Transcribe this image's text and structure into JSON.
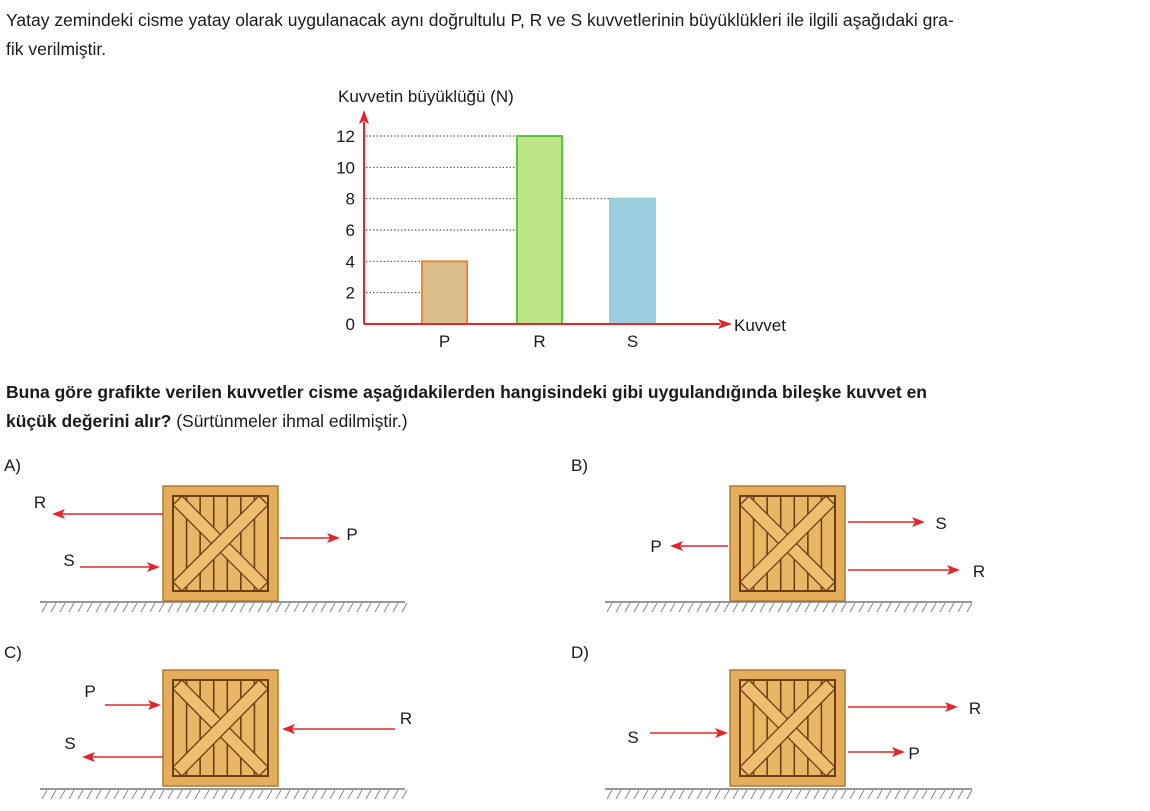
{
  "intro": {
    "line1": "Yatay zemindeki cisme yatay olarak uygulanacak aynı doğrultulu P, R ve S kuvvetlerinin büyüklükleri ile ilgili aşağıdaki gra-",
    "line2": "fik verilmiştir."
  },
  "question": {
    "bold_line1": "Buna göre grafikte verilen kuvvetler cisme aşağıdakilerden hangisindeki gibi uygulandığında bileşke kuvvet en",
    "bold_line2": "küçük değerini alır?",
    "note": " (Sürtünmeler ihmal edilmiştir.)"
  },
  "chart_data": {
    "type": "bar",
    "ylabel": "Kuvvetin büyüklüğü (N)",
    "xlabel": "Kuvvet",
    "categories": [
      "P",
      "R",
      "S"
    ],
    "values": [
      4,
      12,
      8
    ],
    "yticks": [
      "0",
      "2",
      "4",
      "6",
      "8",
      "10",
      "12"
    ],
    "ylim": [
      0,
      12
    ],
    "grid": "dotted guide lines at 2, 4, 6, 8, 10, 12",
    "colors": {
      "P": "#d8bf8c",
      "R": "#bde58a",
      "S": "#9bcfe0",
      "axis": "#e2262c"
    },
    "bar_borders": {
      "P": "#e8873a",
      "R": "#5cc640",
      "S": "#9bcfe0"
    }
  },
  "options": [
    {
      "label": "A)",
      "arrows": [
        {
          "name": "R",
          "dir": "left"
        },
        {
          "name": "S",
          "dir": "right"
        },
        {
          "name": "P",
          "dir": "right"
        }
      ]
    },
    {
      "label": "B)",
      "arrows": [
        {
          "name": "P",
          "dir": "left"
        },
        {
          "name": "S",
          "dir": "right"
        },
        {
          "name": "R",
          "dir": "right"
        }
      ]
    },
    {
      "label": "C)",
      "arrows": [
        {
          "name": "P",
          "dir": "right"
        },
        {
          "name": "S",
          "dir": "left"
        },
        {
          "name": "R",
          "dir": "left"
        }
      ]
    },
    {
      "label": "D)",
      "arrows": [
        {
          "name": "S",
          "dir": "right"
        },
        {
          "name": "R",
          "dir": "right"
        },
        {
          "name": "P",
          "dir": "right"
        }
      ]
    }
  ],
  "colors": {
    "arrow": "#e2262c",
    "crate": "#e3ad5c",
    "crate_dark": "#6b3f12",
    "ground": "#777777"
  }
}
